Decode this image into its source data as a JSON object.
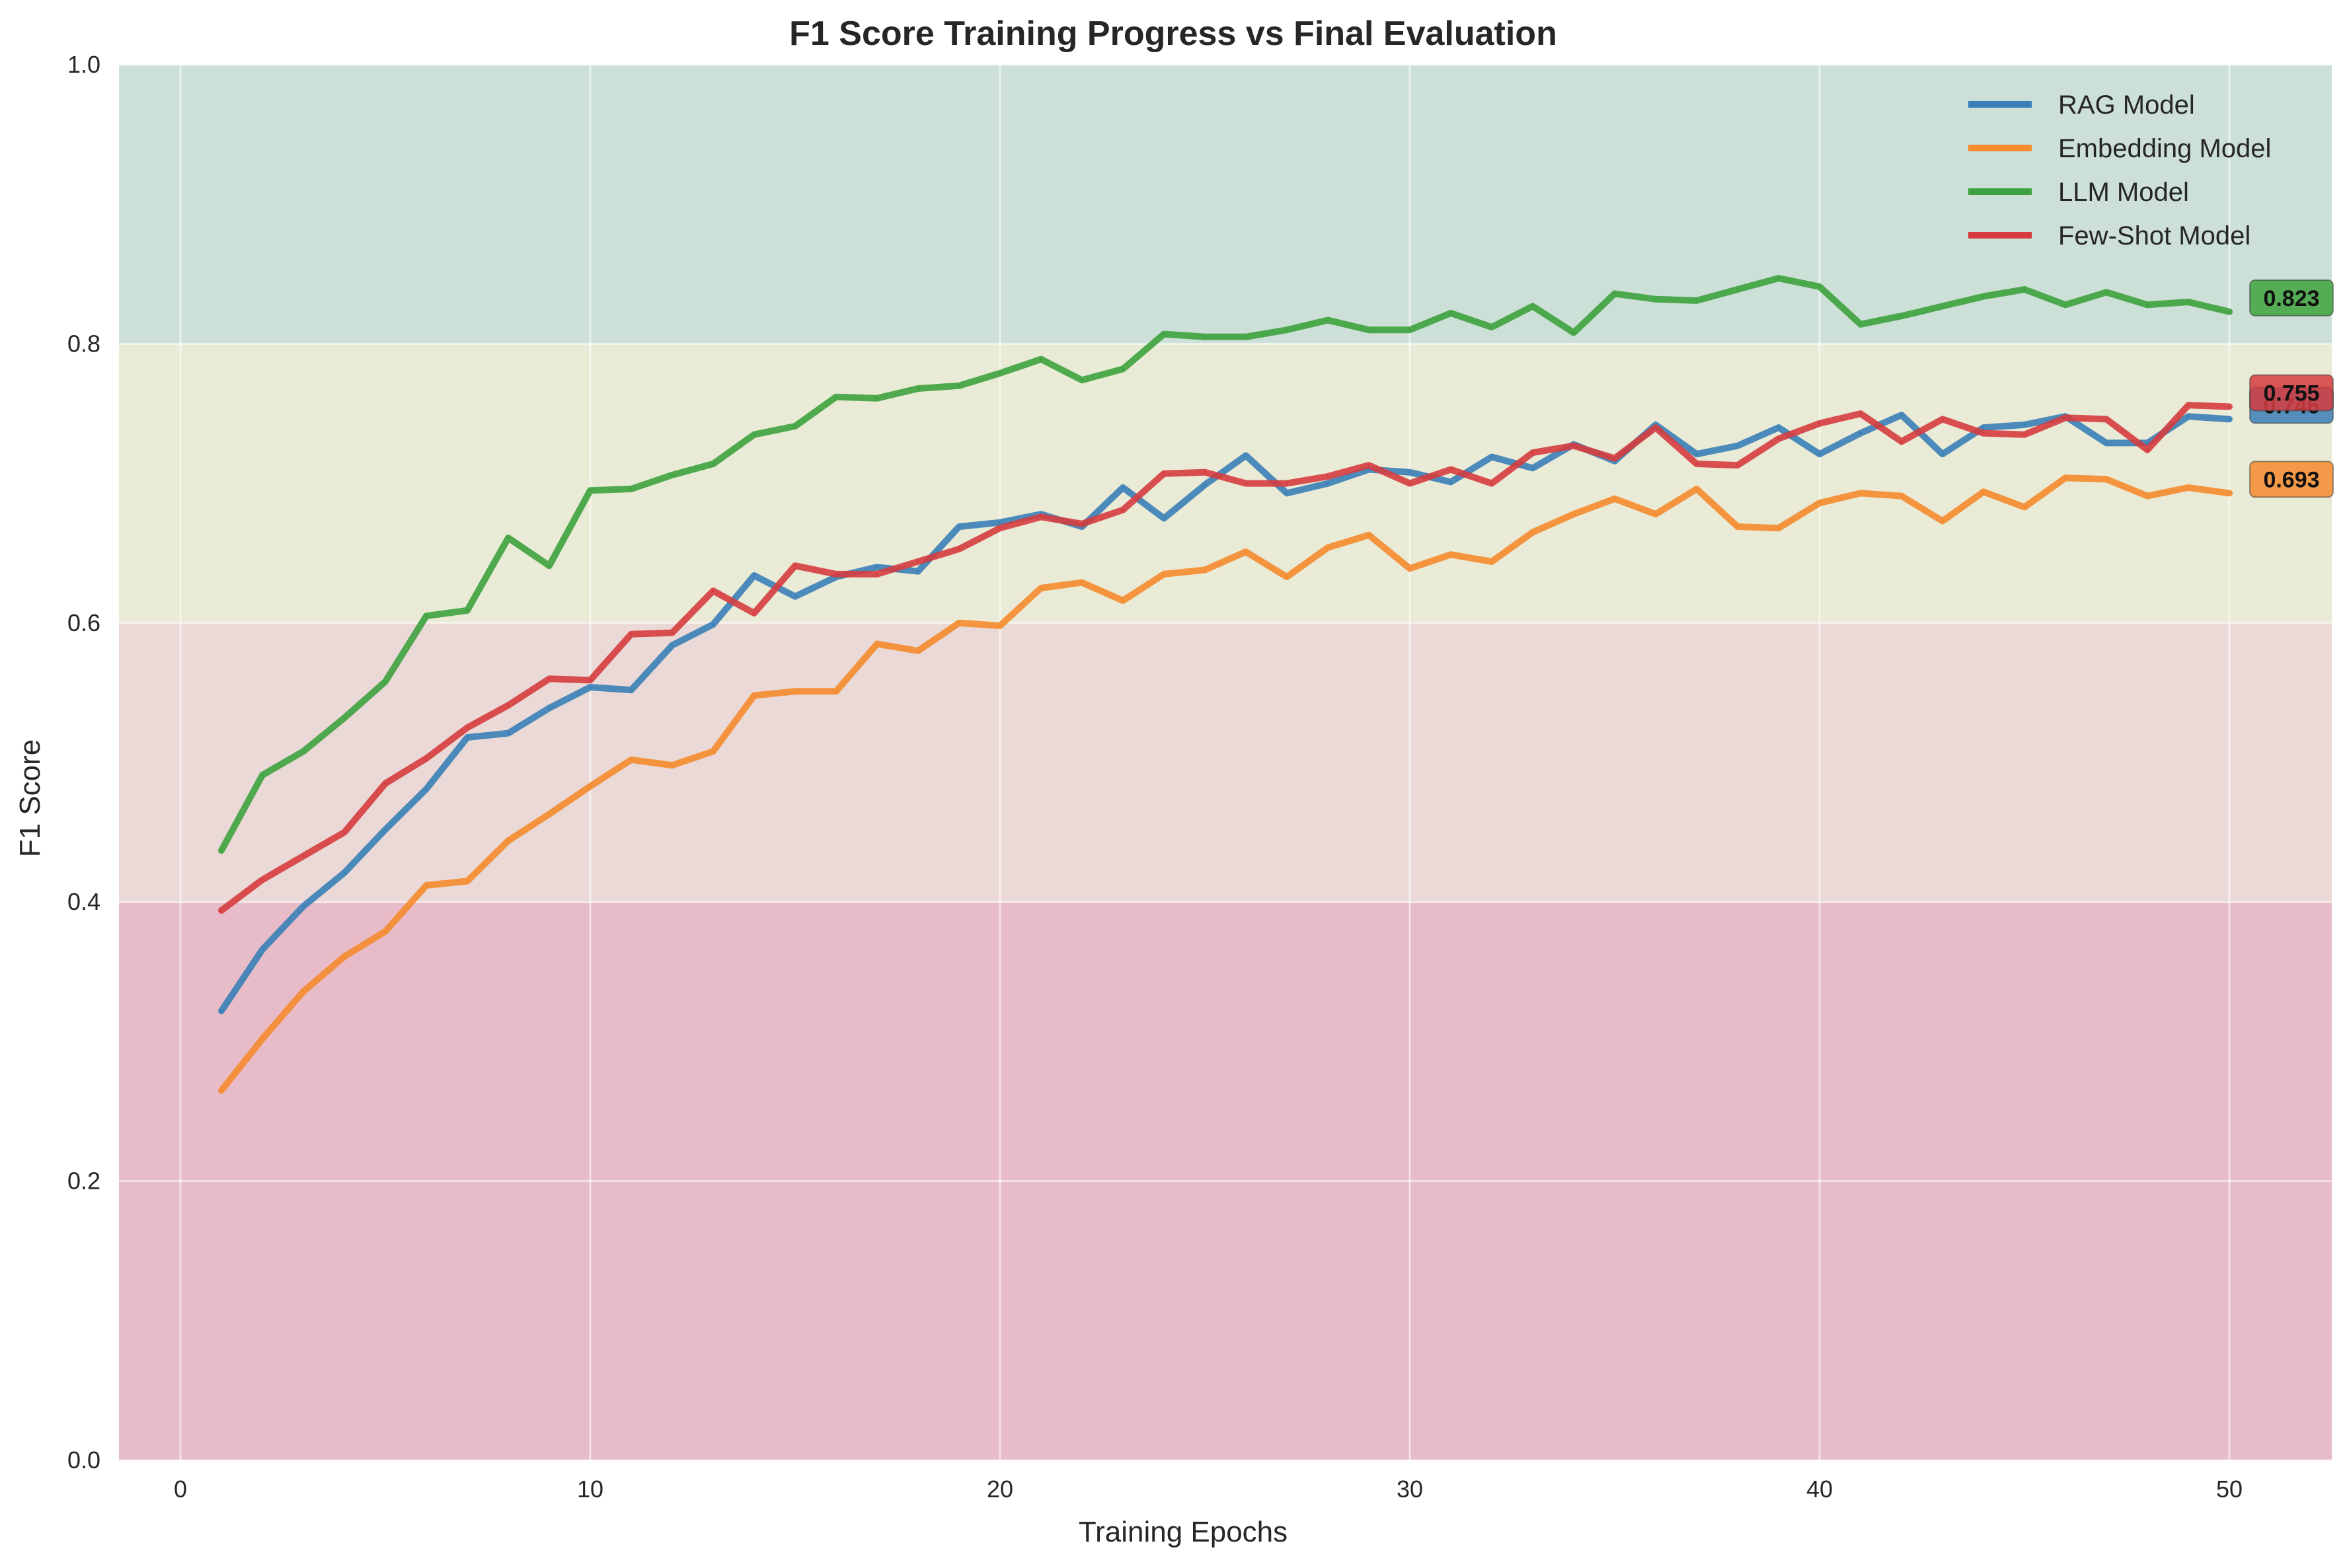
{
  "chart_data": {
    "type": "line",
    "title": "F1 Score Training Progress vs Final Evaluation",
    "xlabel": "Training Epochs",
    "ylabel": "F1 Score",
    "xlim": [
      -1.5,
      52.5
    ],
    "ylim": [
      0.0,
      1.0
    ],
    "xticks": [
      0,
      10,
      20,
      30,
      40,
      50
    ],
    "xtick_labels": [
      "0",
      "10",
      "20",
      "30",
      "40",
      "50"
    ],
    "yticks": [
      0.0,
      0.2,
      0.4,
      0.6,
      0.8,
      1.0
    ],
    "ytick_labels": [
      "0.0",
      "0.2",
      "0.4",
      "0.6",
      "0.8",
      "1.0"
    ],
    "grid": true,
    "legend_position": "top-right",
    "bands": [
      {
        "from": 0.0,
        "to": 0.4,
        "color": "#e7bcc8"
      },
      {
        "from": 0.4,
        "to": 0.6,
        "color": "#ead9d6"
      },
      {
        "from": 0.6,
        "to": 0.8,
        "color": "#eaebd6"
      },
      {
        "from": 0.8,
        "to": 1.0,
        "color": "#cde0d7"
      }
    ],
    "x": [
      1,
      2,
      3,
      4,
      5,
      6,
      7,
      8,
      9,
      10,
      11,
      12,
      13,
      14,
      15,
      16,
      17,
      18,
      19,
      20,
      21,
      22,
      23,
      24,
      25,
      26,
      27,
      28,
      29,
      30,
      31,
      32,
      33,
      34,
      35,
      36,
      37,
      38,
      39,
      40,
      41,
      42,
      43,
      44,
      45,
      46,
      47,
      48,
      49,
      50
    ],
    "series": [
      {
        "name": "RAG Model",
        "color": "#3a7fb7",
        "final_label": "0.746",
        "values": [
          0.322,
          0.366,
          0.397,
          0.421,
          0.452,
          0.481,
          0.518,
          0.521,
          0.539,
          0.554,
          0.552,
          0.584,
          0.599,
          0.634,
          0.619,
          0.633,
          0.64,
          0.637,
          0.669,
          0.672,
          0.678,
          0.669,
          0.697,
          0.675,
          0.699,
          0.72,
          0.693,
          0.7,
          0.71,
          0.708,
          0.701,
          0.719,
          0.711,
          0.728,
          0.716,
          0.742,
          0.721,
          0.727,
          0.74,
          0.721,
          0.736,
          0.749,
          0.721,
          0.74,
          0.742,
          0.748,
          0.729,
          0.729,
          0.748,
          0.746
        ]
      },
      {
        "name": "Embedding Model",
        "color": "#f58b2e",
        "final_label": "0.693",
        "values": [
          0.265,
          0.302,
          0.336,
          0.361,
          0.379,
          0.412,
          0.415,
          0.444,
          0.463,
          0.483,
          0.502,
          0.498,
          0.508,
          0.548,
          0.551,
          0.551,
          0.585,
          0.58,
          0.6,
          0.598,
          0.625,
          0.629,
          0.616,
          0.635,
          0.638,
          0.651,
          0.633,
          0.654,
          0.663,
          0.639,
          0.649,
          0.644,
          0.665,
          0.678,
          0.689,
          0.678,
          0.696,
          0.669,
          0.668,
          0.686,
          0.693,
          0.691,
          0.673,
          0.694,
          0.683,
          0.704,
          0.703,
          0.691,
          0.697,
          0.693
        ]
      },
      {
        "name": "LLM Model",
        "color": "#3ea23e",
        "final_label": "0.823",
        "values": [
          0.437,
          0.491,
          0.508,
          0.532,
          0.558,
          0.605,
          0.609,
          0.661,
          0.641,
          0.695,
          0.696,
          0.706,
          0.714,
          0.735,
          0.741,
          0.762,
          0.761,
          0.768,
          0.77,
          0.779,
          0.789,
          0.774,
          0.782,
          0.807,
          0.805,
          0.805,
          0.81,
          0.817,
          0.81,
          0.81,
          0.822,
          0.812,
          0.827,
          0.808,
          0.836,
          0.832,
          0.831,
          0.839,
          0.847,
          0.841,
          0.814,
          0.82,
          0.827,
          0.834,
          0.839,
          0.828,
          0.837,
          0.828,
          0.83,
          0.823
        ]
      },
      {
        "name": "Few-Shot Model",
        "color": "#d63c3f",
        "final_label": "0.755",
        "values": [
          0.394,
          0.416,
          0.433,
          0.45,
          0.485,
          0.503,
          0.525,
          0.541,
          0.56,
          0.559,
          0.592,
          0.593,
          0.623,
          0.607,
          0.641,
          0.635,
          0.635,
          0.644,
          0.653,
          0.668,
          0.676,
          0.671,
          0.681,
          0.707,
          0.708,
          0.7,
          0.7,
          0.705,
          0.713,
          0.7,
          0.71,
          0.7,
          0.722,
          0.727,
          0.718,
          0.74,
          0.714,
          0.713,
          0.732,
          0.743,
          0.75,
          0.73,
          0.746,
          0.736,
          0.735,
          0.747,
          0.746,
          0.724,
          0.756,
          0.755
        ]
      }
    ]
  }
}
